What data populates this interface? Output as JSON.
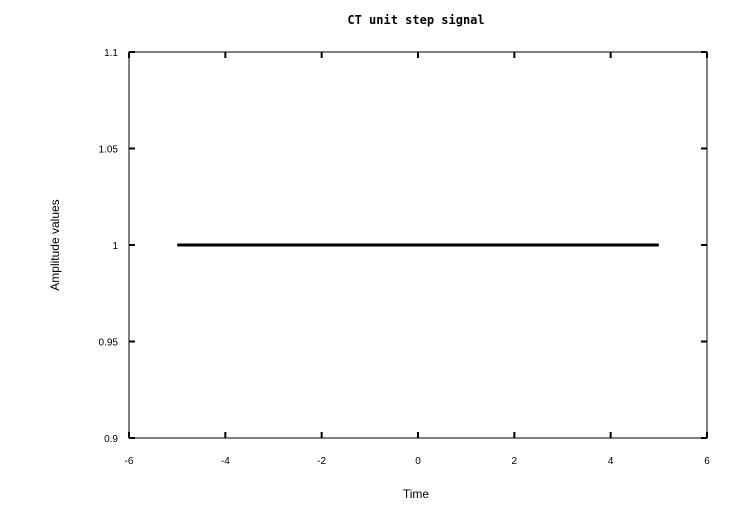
{
  "chart_data": {
    "type": "line",
    "title": "CT unit step signal",
    "xlabel": "Time",
    "ylabel": "Amplitude values",
    "xlim": [
      -6,
      6
    ],
    "ylim": [
      0.9,
      1.1
    ],
    "x_ticks": [
      -6,
      -4,
      -2,
      0,
      2,
      4,
      6
    ],
    "x_tick_labels": [
      "-6",
      "-4",
      "-2",
      "0",
      "2",
      "4",
      "6"
    ],
    "y_ticks": [
      0.9,
      0.95,
      1,
      1.05,
      1.1
    ],
    "y_tick_labels": [
      "0.9",
      "0.95",
      "1",
      "1.05",
      "1.1"
    ],
    "grid": false,
    "colors": {
      "line": "#000000",
      "axes": "#000000",
      "background": "#ffffff"
    },
    "series": [
      {
        "x": [
          -5,
          5
        ],
        "y": [
          1,
          1
        ]
      }
    ]
  }
}
